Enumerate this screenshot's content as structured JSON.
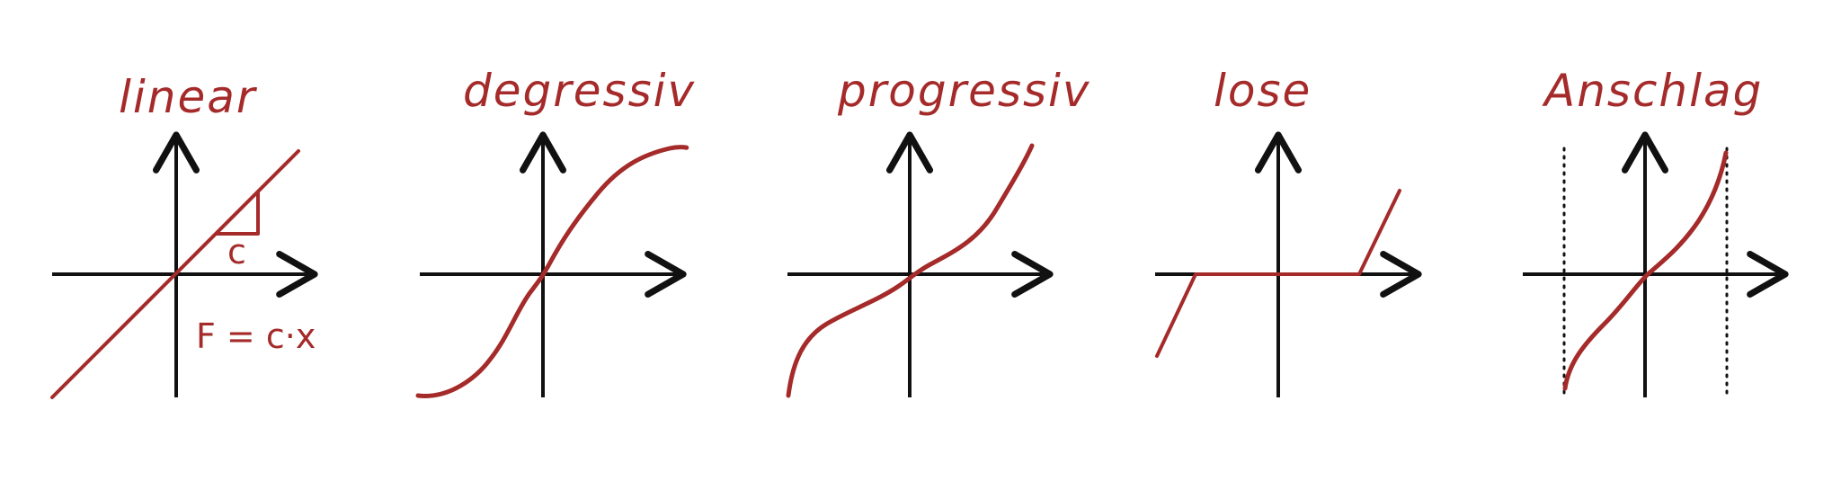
{
  "colors": {
    "curve": "#a52a2a",
    "axis": "#111111",
    "background": "#ffffff"
  },
  "panels": [
    {
      "title": "linear",
      "annotation_slope": "c",
      "annotation_formula": "F = c·x"
    },
    {
      "title": "degressiv"
    },
    {
      "title": "progressiv"
    },
    {
      "title": "lose"
    },
    {
      "title": "Anschlag"
    }
  ]
}
